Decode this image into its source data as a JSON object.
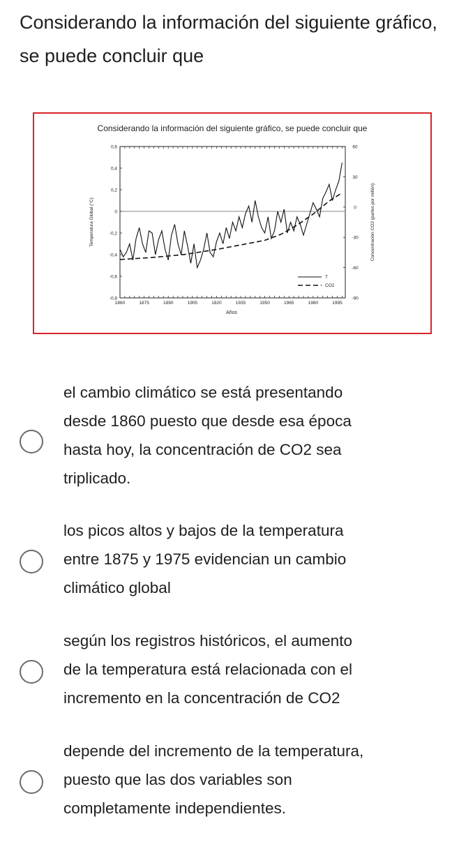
{
  "question": {
    "text": "Considerando la información del siguiente gráfico, se puede concluir que"
  },
  "figure": {
    "caption": "Considerando la información del siguiente gráfico, se puede concluir que",
    "border_color": "#d8232a"
  },
  "chart_data": {
    "type": "line",
    "title": "",
    "xlabel": "Años",
    "ylabel_left": "Temperatura Global (°C)",
    "ylabel_right": "Concentración CO2 (partes por millón)",
    "xlim": [
      1860,
      2000
    ],
    "ylim_left": [
      -0.8,
      0.6
    ],
    "ylim_right": [
      -90,
      60
    ],
    "x_ticks": [
      "1860",
      "1875",
      "1890",
      "1905",
      "1920",
      "1935",
      "1950",
      "1965",
      "1980",
      "1995"
    ],
    "y_ticks_left": [
      "0,6",
      "0,4",
      "0,2",
      "0",
      "-0,2",
      "-0,4",
      "-0,6",
      "-0,8"
    ],
    "y_ticks_right": [
      "60",
      "30",
      "0",
      "-30",
      "-60",
      "-90"
    ],
    "legend": {
      "position": "bottom-right",
      "entries": [
        "T",
        "CO2"
      ]
    },
    "series": [
      {
        "name": "T",
        "axis": "left",
        "style": "solid",
        "x": [
          1860,
          1862,
          1864,
          1866,
          1868,
          1870,
          1872,
          1874,
          1876,
          1878,
          1880,
          1882,
          1884,
          1886,
          1888,
          1890,
          1892,
          1894,
          1896,
          1898,
          1900,
          1902,
          1904,
          1906,
          1908,
          1910,
          1912,
          1914,
          1916,
          1918,
          1920,
          1922,
          1924,
          1926,
          1928,
          1930,
          1932,
          1934,
          1936,
          1938,
          1940,
          1942,
          1944,
          1946,
          1948,
          1950,
          1952,
          1954,
          1956,
          1958,
          1960,
          1962,
          1964,
          1966,
          1968,
          1970,
          1972,
          1974,
          1976,
          1978,
          1980,
          1982,
          1984,
          1986,
          1988,
          1990,
          1992,
          1994,
          1996,
          1998
        ],
        "values": [
          -0.35,
          -0.42,
          -0.38,
          -0.3,
          -0.45,
          -0.25,
          -0.15,
          -0.3,
          -0.38,
          -0.18,
          -0.2,
          -0.4,
          -0.26,
          -0.18,
          -0.35,
          -0.45,
          -0.22,
          -0.12,
          -0.3,
          -0.4,
          -0.18,
          -0.32,
          -0.48,
          -0.3,
          -0.52,
          -0.45,
          -0.35,
          -0.2,
          -0.38,
          -0.42,
          -0.28,
          -0.2,
          -0.3,
          -0.15,
          -0.25,
          -0.1,
          -0.18,
          -0.05,
          -0.15,
          -0.02,
          0.05,
          -0.1,
          0.1,
          -0.05,
          -0.15,
          -0.2,
          -0.05,
          -0.25,
          -0.18,
          0.0,
          -0.1,
          0.02,
          -0.2,
          -0.1,
          -0.18,
          -0.05,
          -0.12,
          -0.22,
          -0.12,
          -0.02,
          0.08,
          0.02,
          -0.05,
          0.12,
          0.18,
          0.25,
          0.1,
          0.2,
          0.28,
          0.45
        ]
      },
      {
        "name": "CO2",
        "axis": "right",
        "style": "dashed",
        "x": [
          1860,
          1880,
          1900,
          1920,
          1940,
          1950,
          1960,
          1970,
          1980,
          1990,
          1998
        ],
        "values": [
          -52,
          -50,
          -47,
          -42,
          -36,
          -33,
          -27,
          -18,
          -7,
          6,
          14
        ]
      }
    ]
  },
  "options": [
    {
      "lines": [
        "el cambio climático se está presentando",
        "desde 1860 puesto que desde esa época",
        "hasta hoy, la concentración de CO2 sea",
        "triplicado."
      ]
    },
    {
      "lines": [
        "los picos altos y bajos de la temperatura",
        "entre 1875 y 1975 evidencian un cambio",
        "climático global"
      ]
    },
    {
      "lines": [
        "según los registros históricos, el aumento",
        "de la temperatura está relacionada con el",
        "incremento en la concentración de CO2"
      ]
    },
    {
      "lines": [
        "depende del incremento de la temperatura,",
        "puesto que las dos variables son",
        "completamente independientes."
      ]
    }
  ]
}
